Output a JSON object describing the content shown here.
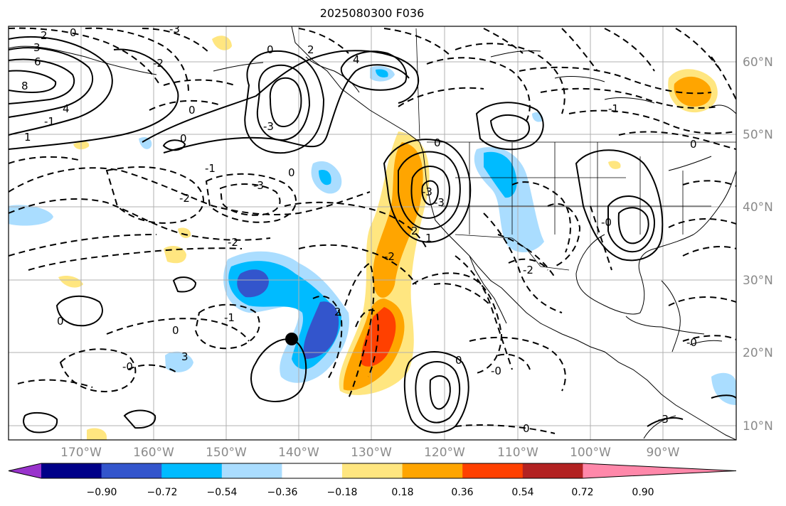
{
  "title": "2025080300 F036",
  "lat_labels": [
    "60°N",
    "50°N",
    "40°N",
    "30°N",
    "20°N",
    "10°N"
  ],
  "lon_labels": [
    "170°W",
    "160°W",
    "150°W",
    "140°W",
    "130°W",
    "120°W",
    "110°W",
    "100°W",
    "90°W"
  ],
  "colorbar": {
    "ticks": [
      "−0.90",
      "−0.72",
      "−0.54",
      "−0.36",
      "−0.18",
      "0.18",
      "0.36",
      "0.54",
      "0.72",
      "0.90"
    ],
    "colors": [
      "#9933cc",
      "#000088",
      "#3355cc",
      "#00bbff",
      "#aaddff",
      "#ffffff",
      "#ffe680",
      "#ffa500",
      "#ff4000",
      "#b22222",
      "#ff88aa"
    ]
  },
  "contour_labels": [
    "0",
    "-3",
    "2",
    "3",
    "6",
    "8",
    "4",
    "1",
    "-1",
    "2",
    "0",
    "0",
    "-2",
    "-3",
    "-2",
    "-3",
    "-2",
    "0",
    "-1",
    "0",
    "0",
    "-0",
    "3",
    "-1",
    "0",
    "4",
    "0",
    "2",
    "-3",
    "1",
    "2",
    "-3",
    "-2",
    "-0",
    "0",
    "0",
    "-0",
    "0",
    "-0",
    "-3",
    "-2",
    "-1"
  ],
  "marker": "filled-circle"
}
